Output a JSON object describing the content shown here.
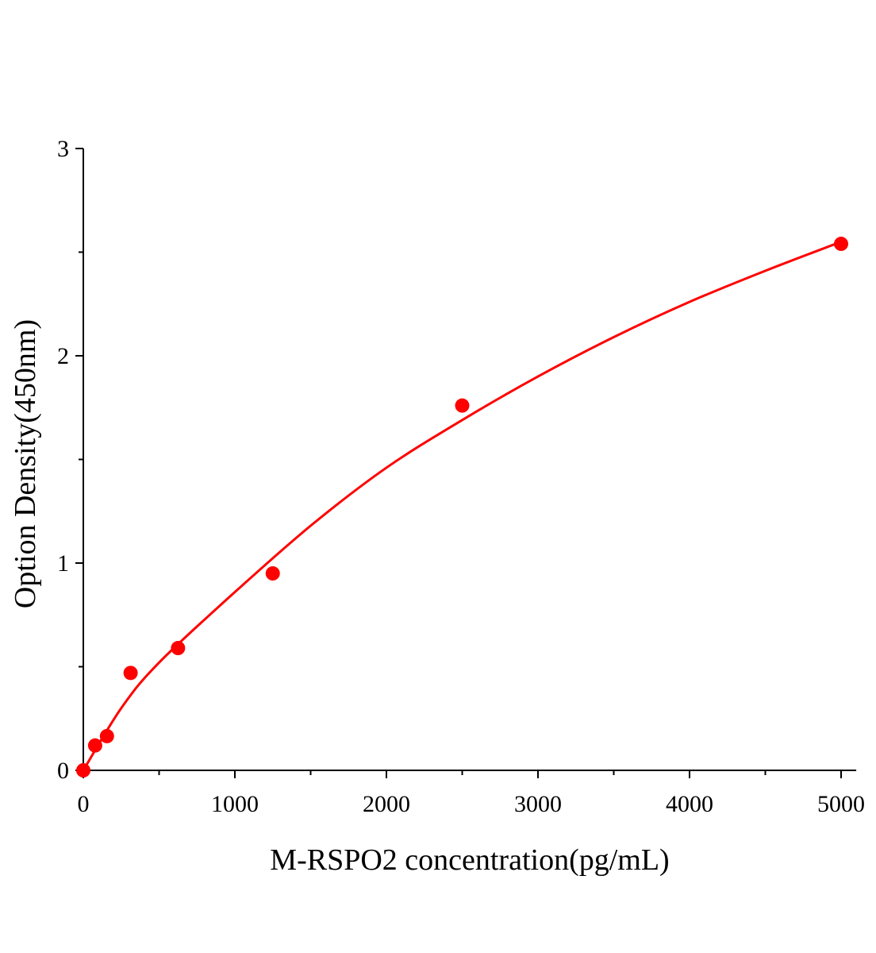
{
  "chart_data": {
    "type": "scatter",
    "title": "",
    "xlabel": "M-RSPO2 concentration(pg/mL)",
    "ylabel": "Option Density(450nm)",
    "xlim": [
      0,
      5100
    ],
    "ylim": [
      0,
      3
    ],
    "xticks": [
      0,
      1000,
      2000,
      3000,
      4000,
      5000
    ],
    "yticks": [
      0,
      1,
      2,
      3
    ],
    "xtick_labels": [
      "0",
      "1000",
      "2000",
      "3000",
      "4000",
      "5000"
    ],
    "ytick_labels": [
      "0",
      "1",
      "2",
      "3"
    ],
    "grid": false,
    "color": "#ff0000",
    "points": {
      "x": [
        0,
        78,
        156,
        312,
        625,
        1250,
        2500,
        5000
      ],
      "y": [
        0.0,
        0.12,
        0.165,
        0.47,
        0.59,
        0.95,
        1.76,
        2.54
      ]
    },
    "fit_curve": {
      "x": [
        0,
        250,
        500,
        1000,
        1500,
        2000,
        2500,
        3000,
        3500,
        4000,
        4500,
        5000
      ],
      "y": [
        0,
        0.3,
        0.52,
        0.86,
        1.18,
        1.46,
        1.69,
        1.9,
        2.09,
        2.26,
        2.41,
        2.55
      ]
    }
  }
}
